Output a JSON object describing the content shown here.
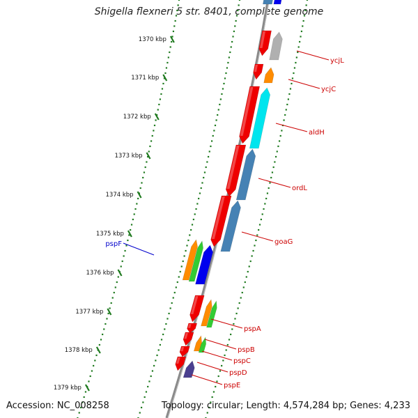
{
  "title": "Shigella flexneri 5 str. 8401, complete genome",
  "footer": {
    "accession": "Accession: NC_008258",
    "summary": "Topology: circular; Length: 4,574,284 bp; Genes: 4,233"
  },
  "ruler": {
    "ticks": [
      "1370 kbp",
      "1371 kbp",
      "1372 kbp",
      "1373 kbp",
      "1374 kbp",
      "1375 kbp",
      "1376 kbp",
      "1377 kbp",
      "1378 kbp",
      "1379 kbp"
    ]
  },
  "colors": {
    "backbone": "#8a8a8a",
    "tick": "#1f7a1f",
    "label_red": "#cc0000",
    "label_blue": "#0000cc",
    "gene_red": "#ee0000",
    "gene_gray": "#b0b0b0",
    "gene_orange": "#ff8c00",
    "gene_cyan": "#00e5ee",
    "gene_steel": "#4682b4",
    "gene_green": "#33cc33",
    "gene_blue": "#0000ee",
    "gene_purple": "#4b3f8f"
  },
  "gene_labels": [
    {
      "name": "ycjL",
      "color": "red"
    },
    {
      "name": "ycjC",
      "color": "red"
    },
    {
      "name": "aldH",
      "color": "red"
    },
    {
      "name": "ordL",
      "color": "red"
    },
    {
      "name": "goaG",
      "color": "red"
    },
    {
      "name": "pspF",
      "color": "blue"
    },
    {
      "name": "pspA",
      "color": "red"
    },
    {
      "name": "pspB",
      "color": "red"
    },
    {
      "name": "pspC",
      "color": "red"
    },
    {
      "name": "pspD",
      "color": "red"
    },
    {
      "name": "pspE",
      "color": "red"
    }
  ]
}
